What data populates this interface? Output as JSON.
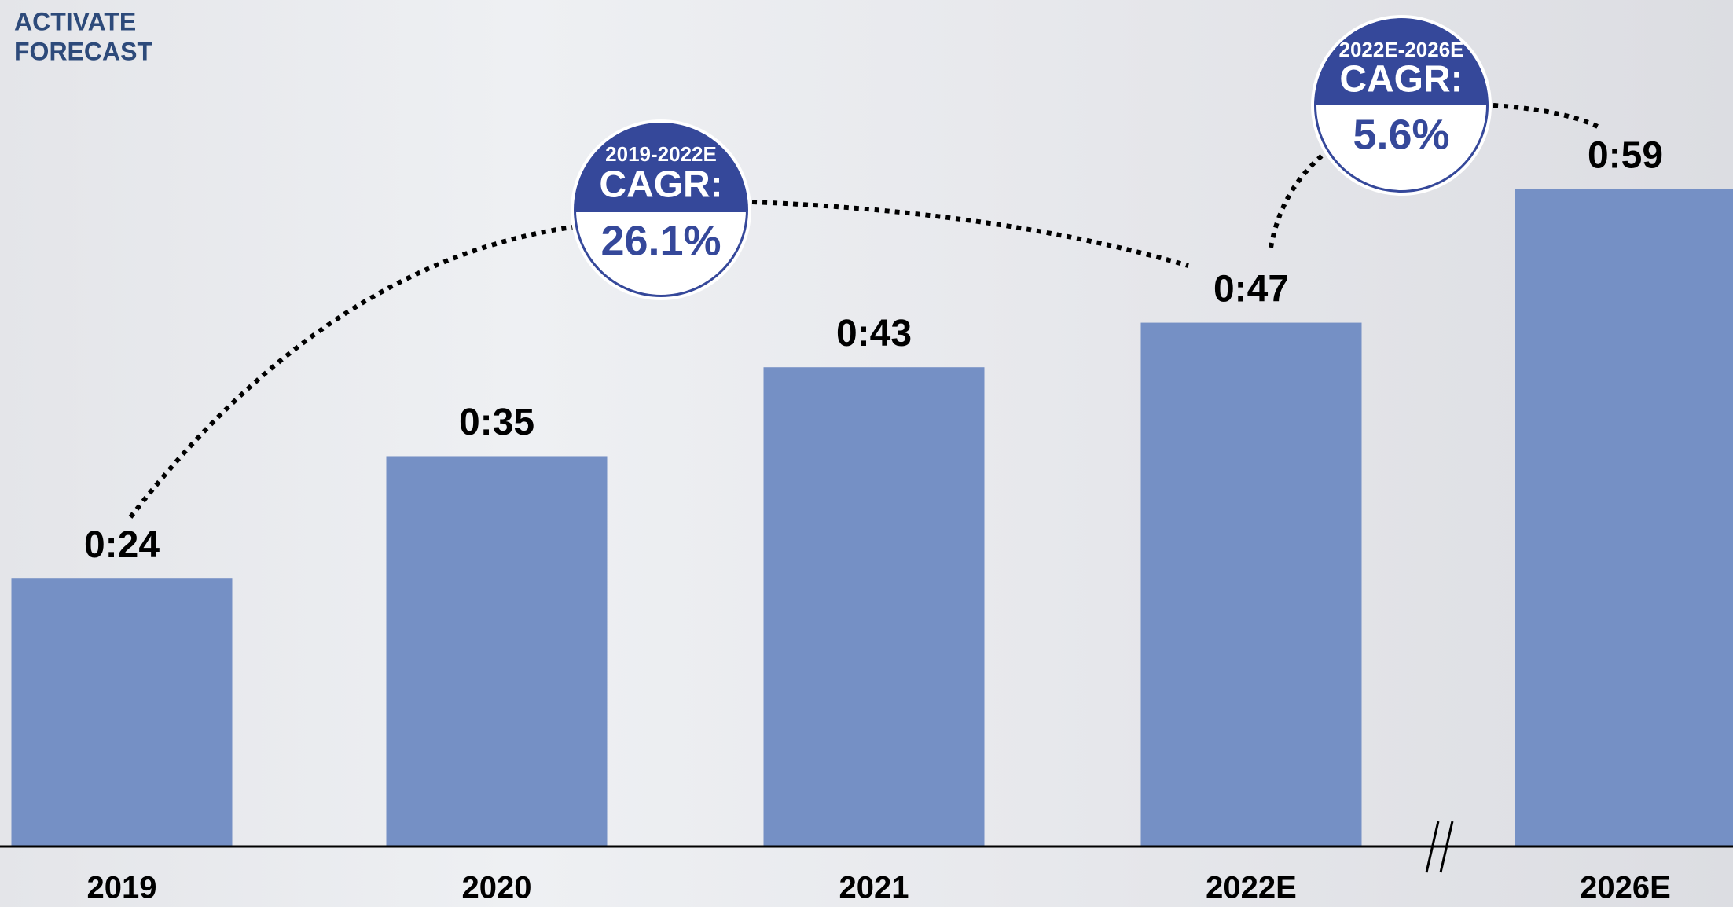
{
  "chart_data": {
    "type": "bar",
    "brand": [
      "ACTIVATE",
      "FORECAST"
    ],
    "categories": [
      "2019",
      "2020",
      "2021",
      "2022E",
      "2026E"
    ],
    "values": [
      24,
      35,
      43,
      47,
      59
    ],
    "value_labels": [
      "0:24",
      "0:35",
      "0:43",
      "0:47",
      "0:59"
    ],
    "color": "#7590c5",
    "ylim": [
      0,
      76
    ],
    "annotations": [
      {
        "period": "2019-2022E",
        "label": "CAGR:",
        "value": "26.1%"
      },
      {
        "period": "2022E-2026E",
        "label": "CAGR:",
        "value": "5.6%"
      }
    ]
  }
}
